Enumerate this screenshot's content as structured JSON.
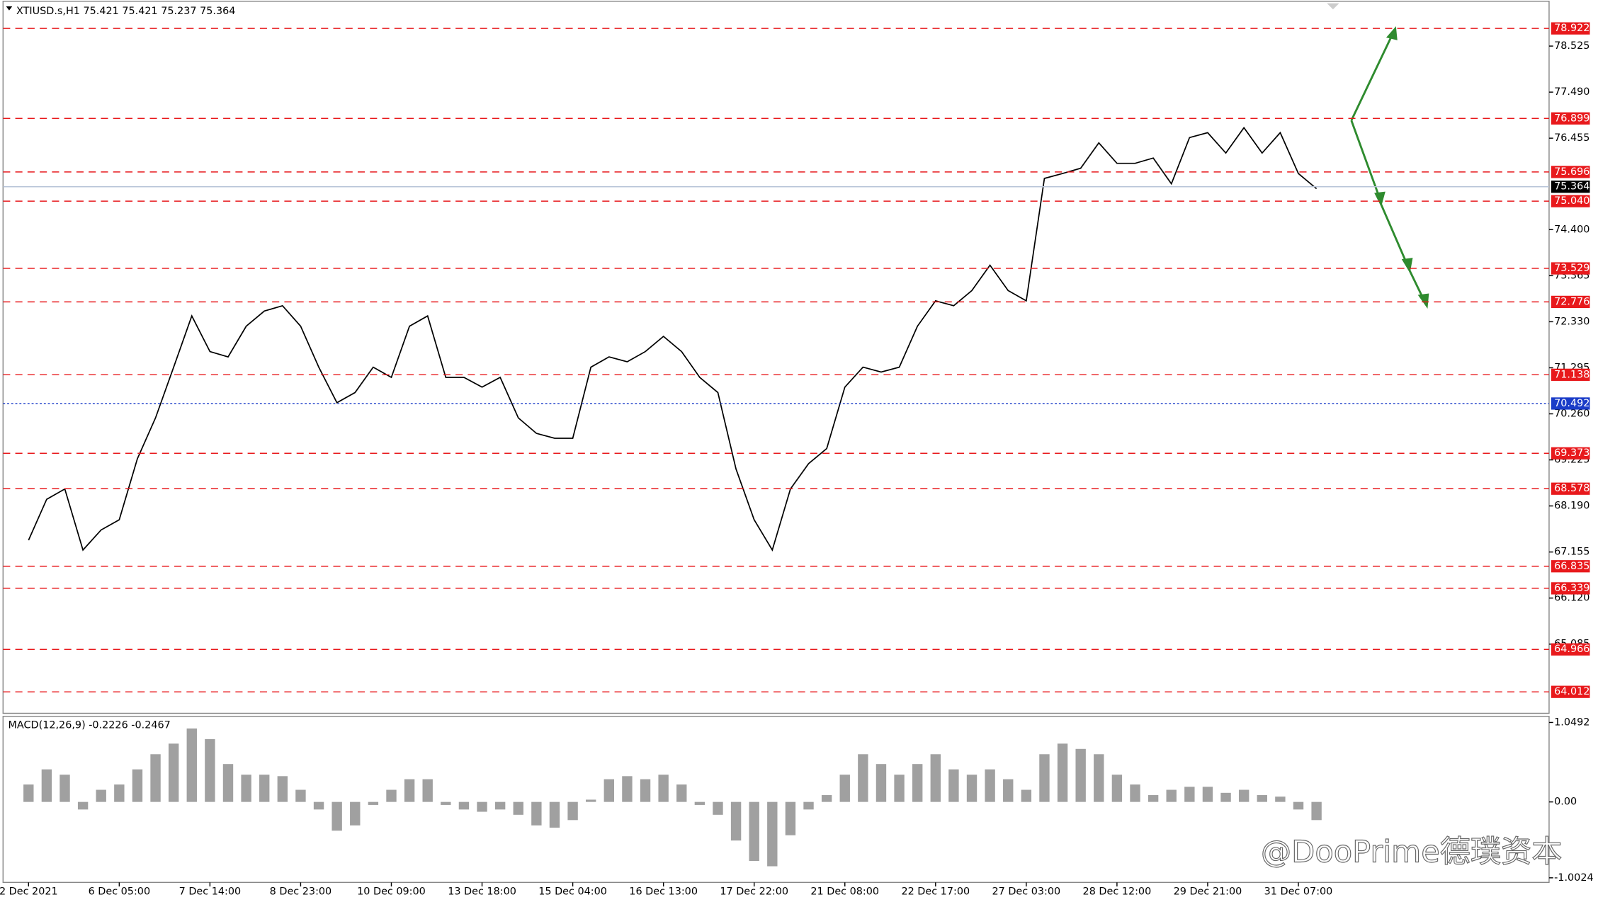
{
  "chart_data": [
    {
      "type": "line",
      "title": "XTIUSD.s,H1  75.421 75.421 75.237 75.364",
      "color": "#000000",
      "categories": [
        "2 Dec 2021",
        null,
        null,
        null,
        null,
        "6 Dec 05:00",
        null,
        null,
        null,
        null,
        "7 Dec 14:00",
        null,
        null,
        null,
        null,
        "8 Dec 23:00",
        null,
        null,
        null,
        null,
        "10 Dec 09:00",
        null,
        null,
        null,
        null,
        "13 Dec 18:00",
        null,
        null,
        null,
        null,
        "15 Dec 04:00",
        null,
        null,
        null,
        null,
        "16 Dec 13:00",
        null,
        null,
        null,
        null,
        "17 Dec 22:00",
        null,
        null,
        null,
        null,
        "21 Dec 08:00",
        null,
        null,
        null,
        null,
        "22 Dec 17:00",
        null,
        null,
        null,
        null,
        "27 Dec 03:00",
        null,
        null,
        null,
        null,
        "28 Dec 12:00",
        null,
        null,
        null,
        null,
        "29 Dec 21:00",
        null,
        null,
        null,
        null,
        "31 Dec 07:00",
        null
      ],
      "values": [
        67.42,
        68.34,
        68.57,
        67.2,
        67.65,
        67.88,
        69.25,
        70.17,
        71.31,
        72.46,
        71.66,
        71.54,
        72.23,
        72.57,
        72.69,
        72.23,
        71.31,
        70.51,
        70.74,
        71.31,
        71.08,
        72.23,
        72.46,
        71.08,
        71.08,
        70.86,
        71.08,
        70.17,
        69.82,
        69.71,
        69.71,
        71.31,
        71.54,
        71.43,
        71.66,
        72.0,
        71.66,
        71.08,
        70.74,
        69.02,
        67.88,
        67.2,
        68.57,
        69.14,
        69.48,
        70.86,
        71.31,
        71.2,
        71.31,
        72.23,
        72.8,
        72.69,
        73.03,
        73.6,
        73.03,
        72.8,
        75.55,
        75.66,
        75.78,
        76.35,
        75.89,
        75.89,
        76.01,
        75.43,
        76.47,
        76.58,
        76.12,
        76.69,
        76.12,
        76.58,
        75.66,
        75.32
      ],
      "ylim": [
        63.53,
        79.555
      ],
      "yticks": [
        78.525,
        {
          "value": 77.49,
          "label": "77.490"
        },
        76.455,
        {
          "value": 74.4,
          "label": "74.400"
        },
        73.365,
        {
          "value": 72.33,
          "label": "72.330"
        },
        71.295,
        {
          "value": 70.26,
          "label": "70.260"
        },
        69.225,
        {
          "value": 68.19,
          "label": "68.190"
        },
        67.155,
        {
          "value": 66.12,
          "label": "66.120"
        },
        65.085
      ],
      "levels": [
        {
          "value": 78.922,
          "color": "#e8191c",
          "style": "dash"
        },
        {
          "value": 76.899,
          "color": "#e8191c",
          "style": "dash"
        },
        {
          "value": 75.696,
          "color": "#e8191c",
          "style": "dash"
        },
        {
          "value": 75.364,
          "color": "#000000",
          "style": "solid"
        },
        {
          "value": 75.04,
          "color": "#e8191c",
          "style": "dash",
          "label": "75.040"
        },
        {
          "value": 73.529,
          "color": "#e8191c",
          "style": "dash"
        },
        {
          "value": 72.776,
          "color": "#e8191c",
          "style": "dash"
        },
        {
          "value": 71.138,
          "color": "#e8191c",
          "style": "dash"
        },
        {
          "value": 70.492,
          "color": "#1a3cc8",
          "style": "dot"
        },
        {
          "value": 69.373,
          "color": "#e8191c",
          "style": "dash"
        },
        {
          "value": 68.578,
          "color": "#e8191c",
          "style": "dash"
        },
        {
          "value": 66.835,
          "color": "#e8191c",
          "style": "dash"
        },
        {
          "value": 66.339,
          "color": "#e8191c",
          "style": "dash"
        },
        {
          "value": 64.966,
          "color": "#e8191c",
          "style": "dash"
        },
        {
          "value": 64.012,
          "color": "#e8191c",
          "style": "dash"
        }
      ]
    },
    {
      "type": "bar",
      "title": "MACD(12,26,9) -0.2226 -0.2467",
      "color": "#a0a0a0",
      "values": [
        0.23,
        0.43,
        0.36,
        -0.1,
        0.16,
        0.23,
        0.43,
        0.63,
        0.77,
        0.97,
        0.83,
        0.5,
        0.36,
        0.36,
        0.34,
        0.16,
        -0.1,
        -0.38,
        -0.31,
        -0.04,
        0.16,
        0.3,
        0.3,
        -0.04,
        -0.1,
        -0.13,
        -0.1,
        -0.17,
        -0.31,
        -0.34,
        -0.24,
        0.03,
        0.3,
        0.34,
        0.3,
        0.36,
        0.23,
        -0.04,
        -0.17,
        -0.51,
        -0.78,
        -0.85,
        -0.44,
        -0.1,
        0.09,
        0.36,
        0.63,
        0.5,
        0.36,
        0.5,
        0.63,
        0.43,
        0.36,
        0.43,
        0.3,
        0.16,
        0.63,
        0.77,
        0.7,
        0.63,
        0.36,
        0.23,
        0.09,
        0.16,
        0.2,
        0.2,
        0.12,
        0.16,
        0.09,
        0.07,
        -0.1,
        -0.24
      ],
      "ylim": [
        -1.063,
        1.13
      ],
      "yticks": [
        1.0492,
        {
          "value": 0,
          "label": "0.00"
        },
        -1.0024
      ]
    }
  ],
  "watermark": "@DooPrime德璞资本"
}
